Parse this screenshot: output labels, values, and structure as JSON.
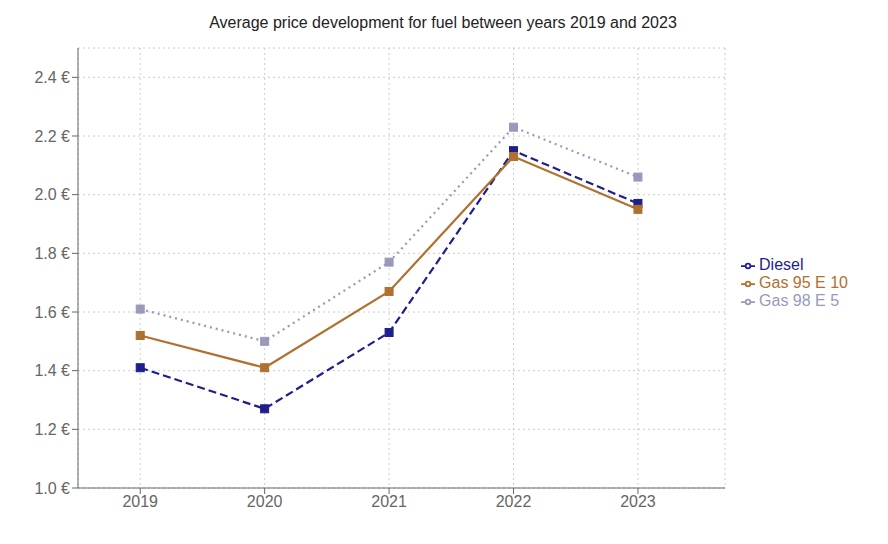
{
  "chart_data": {
    "type": "line",
    "title": "Average price development for fuel between years 2019 and 2023",
    "x": [
      2019,
      2020,
      2021,
      2022,
      2023
    ],
    "series": [
      {
        "name": "Diesel",
        "color": "#1e1e8c",
        "values": [
          1.41,
          1.27,
          1.53,
          2.15,
          1.97
        ],
        "marker": "square",
        "line_style": "dashed"
      },
      {
        "name": "Gas 95 E 10",
        "color": "#b07030",
        "values": [
          1.52,
          1.41,
          1.67,
          2.13,
          1.95
        ],
        "marker": "square",
        "line_style": "solid"
      },
      {
        "name": "Gas 98 E 5",
        "color": "#9999bb",
        "values": [
          1.61,
          1.5,
          1.77,
          2.23,
          2.06
        ],
        "marker": "square",
        "line_style": "dotted"
      }
    ],
    "xlim": [
      2018.5,
      2023.7
    ],
    "xticks": [
      2019,
      2020,
      2021,
      2022,
      2023
    ],
    "ylim": [
      1.0,
      2.5
    ],
    "yticks": [
      {
        "value": 1.0,
        "label": "1.0 €"
      },
      {
        "value": 1.2,
        "label": "1.2 €"
      },
      {
        "value": 1.4,
        "label": "1.4 €"
      },
      {
        "value": 1.6,
        "label": "1.6 €"
      },
      {
        "value": 1.8,
        "label": "1.8 €"
      },
      {
        "value": 2.0,
        "label": "2.0 €"
      },
      {
        "value": 2.2,
        "label": "2.2 €"
      },
      {
        "value": 2.4,
        "label": "2.4 €"
      }
    ],
    "grid": true,
    "legend": "right"
  }
}
